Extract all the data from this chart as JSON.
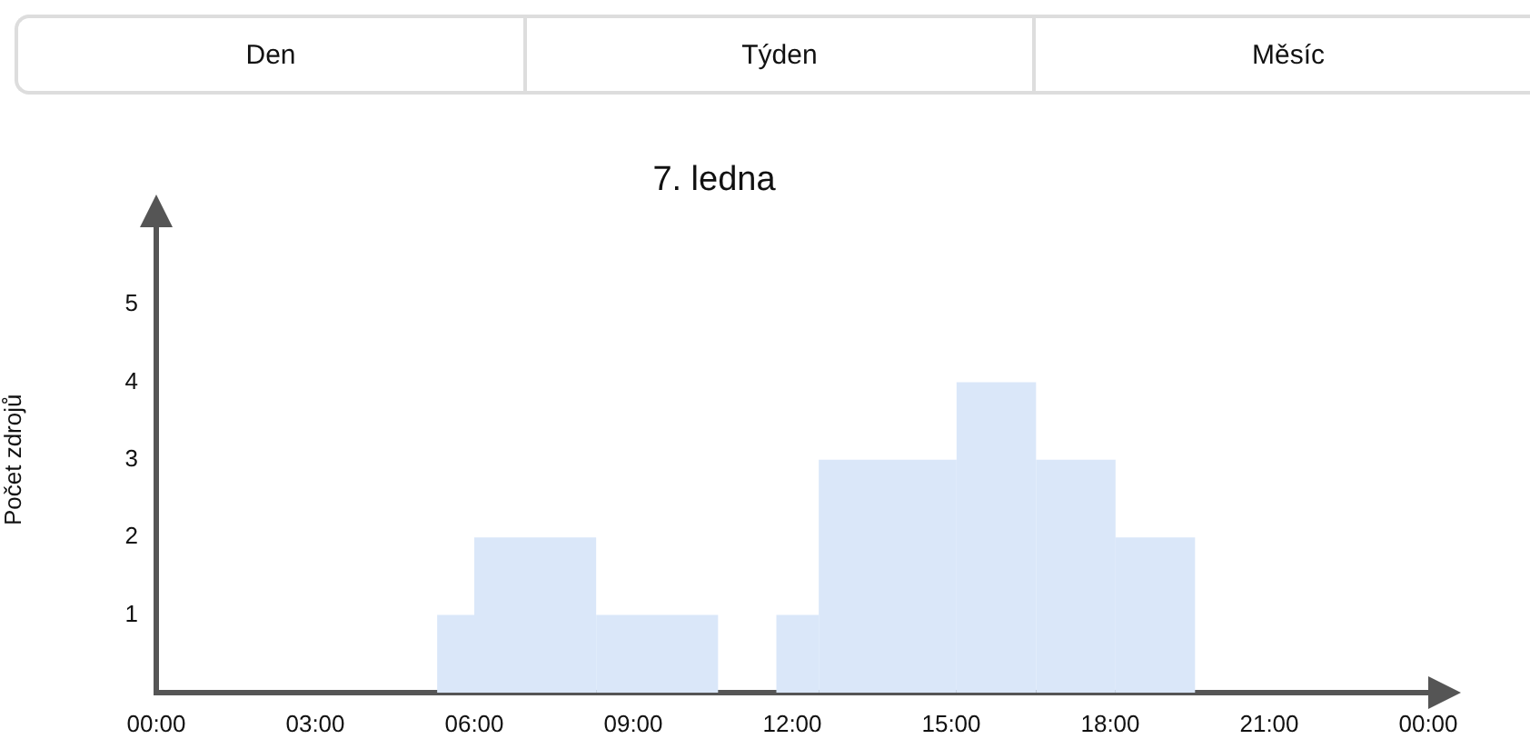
{
  "chart_data": {
    "type": "histogram",
    "title": "7. ledna",
    "ylabel": "Počet zdrojů",
    "annotations": [
      "Den",
      "Týden",
      "Měsíc"
    ],
    "bins": [
      5.3,
      6.0,
      8.3,
      10.6,
      11.7,
      12.5,
      15.1,
      16.6,
      18.1,
      19.6
    ],
    "values": [
      1,
      2,
      1,
      0,
      1,
      3,
      4,
      3,
      2
    ],
    "color": "#dae7f9",
    "xlim": [
      0,
      24
    ],
    "ylim": [
      0,
      6
    ],
    "xticks": [
      {
        "value": 0,
        "label": "00:00"
      },
      {
        "value": 3,
        "label": "03:00"
      },
      {
        "value": 6,
        "label": "06:00"
      },
      {
        "value": 9,
        "label": "09:00"
      },
      {
        "value": 12,
        "label": "12:00"
      },
      {
        "value": 15,
        "label": "15:00"
      },
      {
        "value": 18,
        "label": "18:00"
      },
      {
        "value": 21,
        "label": "21:00"
      },
      {
        "value": 24,
        "label": "00:00"
      }
    ],
    "yticks": [
      1,
      2,
      3,
      4,
      5
    ],
    "grid": false,
    "legend": false
  }
}
